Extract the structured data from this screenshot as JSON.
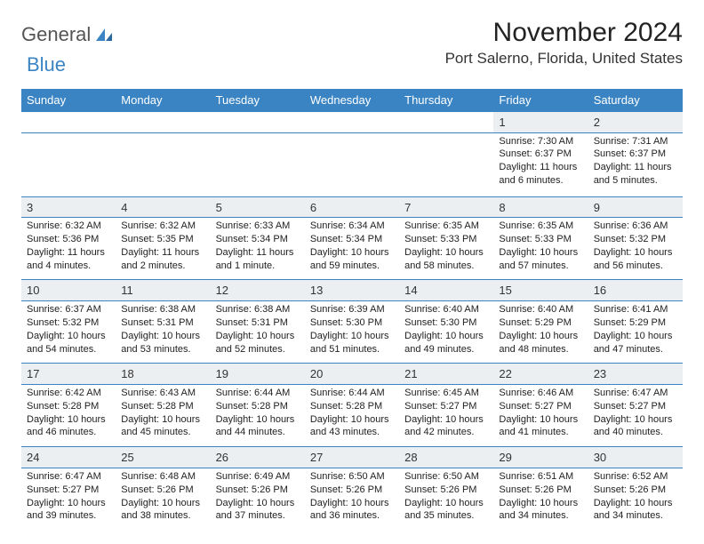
{
  "logo": {
    "word1": "General",
    "word2": "Blue"
  },
  "title": "November 2024",
  "location": "Port Salerno, Florida, United States",
  "day_headers": [
    "Sunday",
    "Monday",
    "Tuesday",
    "Wednesday",
    "Thursday",
    "Friday",
    "Saturday"
  ],
  "colors": {
    "header_bg": "#3a84c4",
    "daynum_bg": "#eceff2",
    "border": "#3a84c4",
    "text": "#222222",
    "logo_gray": "#555555",
    "logo_blue": "#3a84c4"
  },
  "fonts": {
    "title_size": 30,
    "location_size": 17,
    "header_size": 13,
    "daynum_size": 13,
    "body_size": 11
  },
  "weeks": [
    [
      null,
      null,
      null,
      null,
      null,
      {
        "n": "1",
        "sr": "7:30 AM",
        "ss": "6:37 PM",
        "dl": "11 hours and 6 minutes."
      },
      {
        "n": "2",
        "sr": "7:31 AM",
        "ss": "6:37 PM",
        "dl": "11 hours and 5 minutes."
      }
    ],
    [
      {
        "n": "3",
        "sr": "6:32 AM",
        "ss": "5:36 PM",
        "dl": "11 hours and 4 minutes."
      },
      {
        "n": "4",
        "sr": "6:32 AM",
        "ss": "5:35 PM",
        "dl": "11 hours and 2 minutes."
      },
      {
        "n": "5",
        "sr": "6:33 AM",
        "ss": "5:34 PM",
        "dl": "11 hours and 1 minute."
      },
      {
        "n": "6",
        "sr": "6:34 AM",
        "ss": "5:34 PM",
        "dl": "10 hours and 59 minutes."
      },
      {
        "n": "7",
        "sr": "6:35 AM",
        "ss": "5:33 PM",
        "dl": "10 hours and 58 minutes."
      },
      {
        "n": "8",
        "sr": "6:35 AM",
        "ss": "5:33 PM",
        "dl": "10 hours and 57 minutes."
      },
      {
        "n": "9",
        "sr": "6:36 AM",
        "ss": "5:32 PM",
        "dl": "10 hours and 56 minutes."
      }
    ],
    [
      {
        "n": "10",
        "sr": "6:37 AM",
        "ss": "5:32 PM",
        "dl": "10 hours and 54 minutes."
      },
      {
        "n": "11",
        "sr": "6:38 AM",
        "ss": "5:31 PM",
        "dl": "10 hours and 53 minutes."
      },
      {
        "n": "12",
        "sr": "6:38 AM",
        "ss": "5:31 PM",
        "dl": "10 hours and 52 minutes."
      },
      {
        "n": "13",
        "sr": "6:39 AM",
        "ss": "5:30 PM",
        "dl": "10 hours and 51 minutes."
      },
      {
        "n": "14",
        "sr": "6:40 AM",
        "ss": "5:30 PM",
        "dl": "10 hours and 49 minutes."
      },
      {
        "n": "15",
        "sr": "6:40 AM",
        "ss": "5:29 PM",
        "dl": "10 hours and 48 minutes."
      },
      {
        "n": "16",
        "sr": "6:41 AM",
        "ss": "5:29 PM",
        "dl": "10 hours and 47 minutes."
      }
    ],
    [
      {
        "n": "17",
        "sr": "6:42 AM",
        "ss": "5:28 PM",
        "dl": "10 hours and 46 minutes."
      },
      {
        "n": "18",
        "sr": "6:43 AM",
        "ss": "5:28 PM",
        "dl": "10 hours and 45 minutes."
      },
      {
        "n": "19",
        "sr": "6:44 AM",
        "ss": "5:28 PM",
        "dl": "10 hours and 44 minutes."
      },
      {
        "n": "20",
        "sr": "6:44 AM",
        "ss": "5:28 PM",
        "dl": "10 hours and 43 minutes."
      },
      {
        "n": "21",
        "sr": "6:45 AM",
        "ss": "5:27 PM",
        "dl": "10 hours and 42 minutes."
      },
      {
        "n": "22",
        "sr": "6:46 AM",
        "ss": "5:27 PM",
        "dl": "10 hours and 41 minutes."
      },
      {
        "n": "23",
        "sr": "6:47 AM",
        "ss": "5:27 PM",
        "dl": "10 hours and 40 minutes."
      }
    ],
    [
      {
        "n": "24",
        "sr": "6:47 AM",
        "ss": "5:27 PM",
        "dl": "10 hours and 39 minutes."
      },
      {
        "n": "25",
        "sr": "6:48 AM",
        "ss": "5:26 PM",
        "dl": "10 hours and 38 minutes."
      },
      {
        "n": "26",
        "sr": "6:49 AM",
        "ss": "5:26 PM",
        "dl": "10 hours and 37 minutes."
      },
      {
        "n": "27",
        "sr": "6:50 AM",
        "ss": "5:26 PM",
        "dl": "10 hours and 36 minutes."
      },
      {
        "n": "28",
        "sr": "6:50 AM",
        "ss": "5:26 PM",
        "dl": "10 hours and 35 minutes."
      },
      {
        "n": "29",
        "sr": "6:51 AM",
        "ss": "5:26 PM",
        "dl": "10 hours and 34 minutes."
      },
      {
        "n": "30",
        "sr": "6:52 AM",
        "ss": "5:26 PM",
        "dl": "10 hours and 34 minutes."
      }
    ]
  ],
  "labels": {
    "sunrise": "Sunrise:",
    "sunset": "Sunset:",
    "daylight": "Daylight:"
  }
}
